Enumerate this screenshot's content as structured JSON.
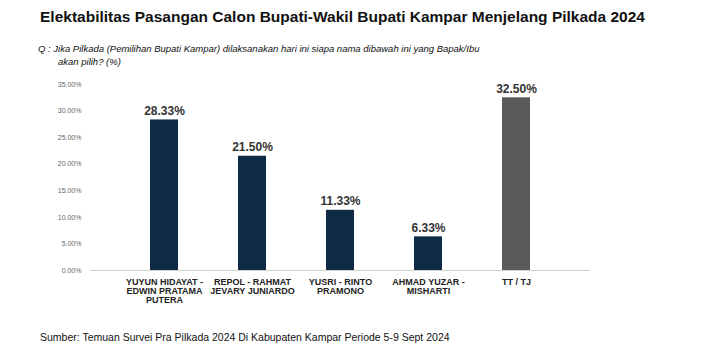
{
  "chart_data": {
    "type": "bar",
    "title": "Elektabilitas Pasangan Calon Bupati-Wakil Bupati Kampar Menjelang Pilkada 2024",
    "subtitle": "Q :  Jika Pilkada (Pemilihan Bupati Kampar) dilaksanakan hari ini siapa nama dibawah ini yang Bapak/Ibu akan pilih? (%)",
    "source": "Sumber: Temuan Survei Pra Pilkada 2024 Di Kabupaten Kampar Periode 5-9 Sept 2024",
    "categories": [
      "YUYUN HIDAYAT - EDWIN PRATAMA PUTERA",
      "REPOL - RAHMAT JEVARY JUNIARDO",
      "YUSRI - RINTO PRAMONO",
      "AHMAD YUZAR - MISHARTI",
      "TT / TJ"
    ],
    "values": [
      28.33,
      21.5,
      11.33,
      6.33,
      32.5
    ],
    "value_labels": [
      "28.33%",
      "21.50%",
      "11.33%",
      "6.33%",
      "32.50%"
    ],
    "colors": [
      "#0f2a45",
      "#0f2a45",
      "#0f2a45",
      "#0f2a45",
      "#5a5a5a"
    ],
    "ylim": [
      0,
      35
    ],
    "yticks": [
      {
        "value": 0,
        "label": "0.00%"
      },
      {
        "value": 5,
        "label": "5.00%"
      },
      {
        "value": 10,
        "label": "10.00%"
      },
      {
        "value": 15,
        "label": "15.00%"
      },
      {
        "value": 20,
        "label": "20.00%"
      },
      {
        "value": 25,
        "label": "25.00%"
      },
      {
        "value": 30,
        "label": "30.00%"
      },
      {
        "value": 35,
        "label": "35.00%"
      }
    ],
    "grid": false,
    "data_labels": true
  }
}
